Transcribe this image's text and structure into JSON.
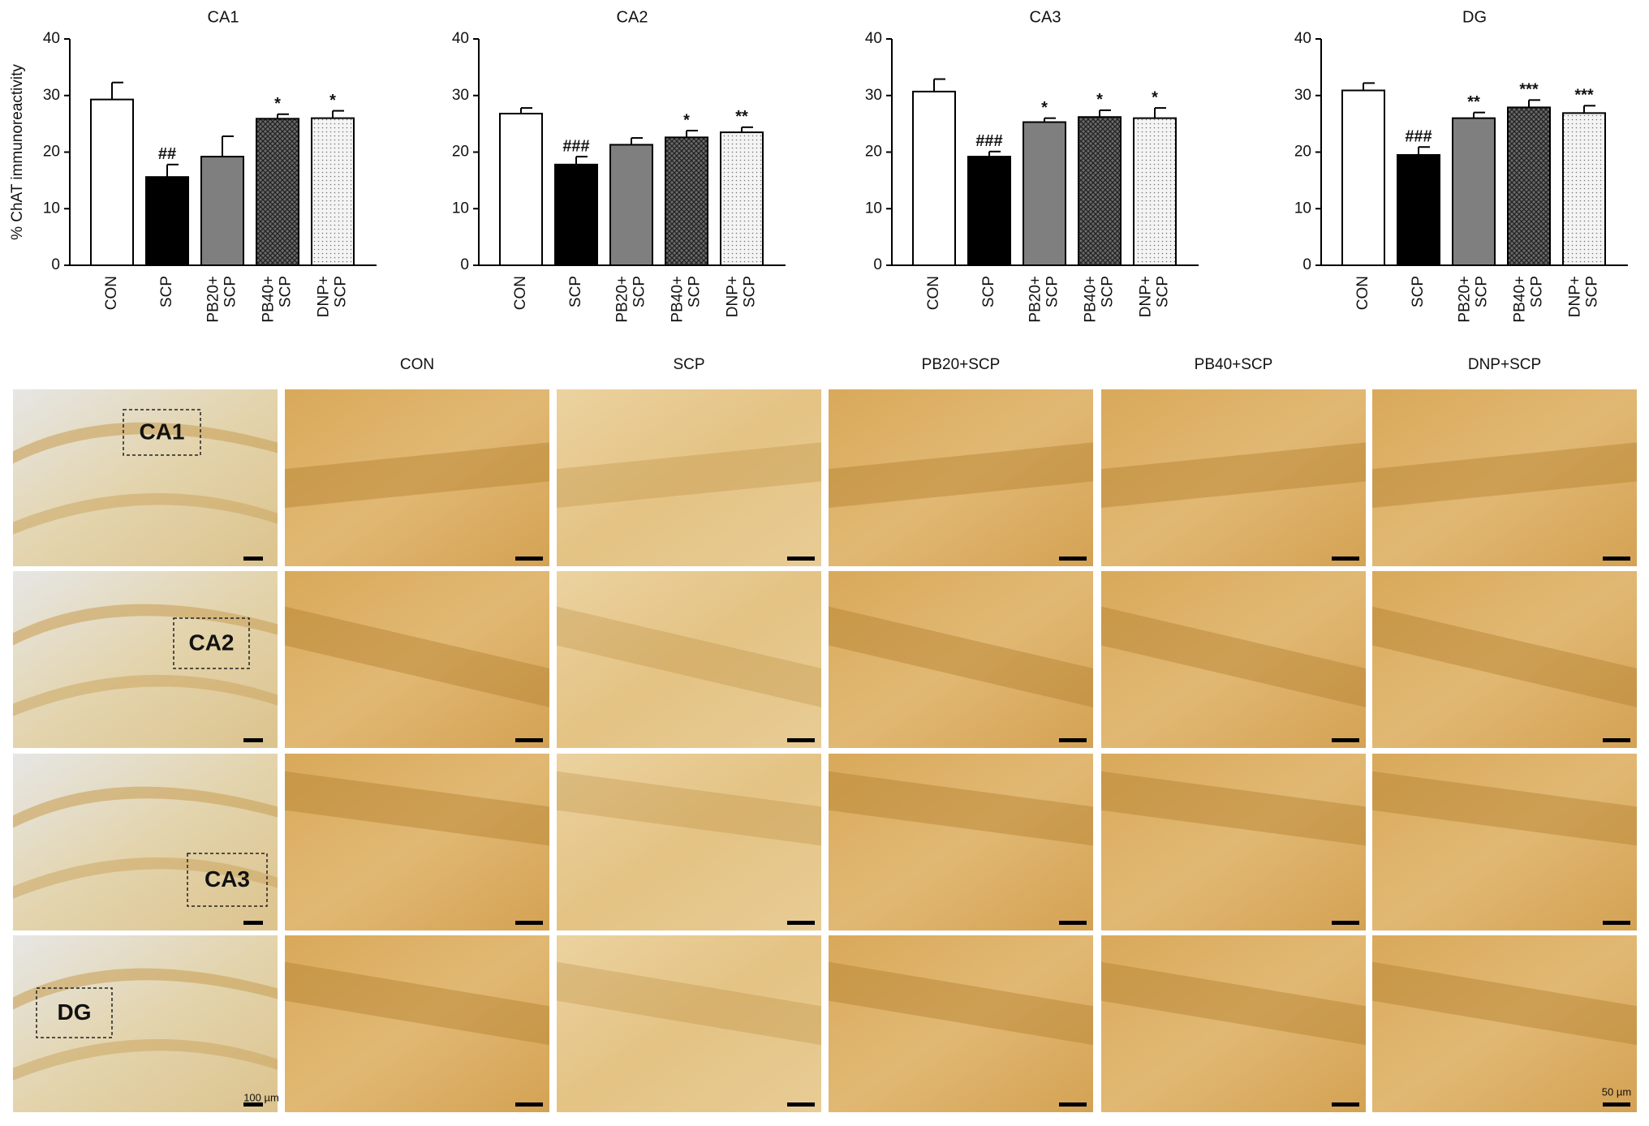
{
  "chart_data": [
    {
      "type": "bar",
      "title": "CA1",
      "ylabel": "% ChAT immunoreactivity",
      "categories": [
        "CON",
        "SCP",
        "PB20+ SCP",
        "PB40+ SCP",
        "DNP+ SCP"
      ],
      "values": [
        29.3,
        15.6,
        19.2,
        25.9,
        26.0
      ],
      "errors": [
        3.0,
        2.2,
        3.6,
        0.8,
        1.3
      ],
      "annotations": [
        null,
        "##",
        null,
        "*",
        "*"
      ],
      "colors": [
        "#ffffff",
        "#000000",
        "#7f7f7f",
        "#555555",
        "#f2f2f2"
      ],
      "patterns": [
        "solid",
        "solid",
        "solid",
        "crosshatch",
        "dots"
      ],
      "ylim": [
        0,
        40
      ],
      "yticks": [
        0,
        10,
        20,
        30,
        40
      ]
    },
    {
      "type": "bar",
      "title": "CA2",
      "categories": [
        "CON",
        "SCP",
        "PB20+ SCP",
        "PB40+ SCP",
        "DNP+ SCP"
      ],
      "values": [
        26.8,
        17.8,
        21.3,
        22.6,
        23.5
      ],
      "errors": [
        1.0,
        1.4,
        1.2,
        1.2,
        0.9
      ],
      "annotations": [
        null,
        "###",
        null,
        "*",
        "**"
      ],
      "colors": [
        "#ffffff",
        "#000000",
        "#7f7f7f",
        "#555555",
        "#f2f2f2"
      ],
      "patterns": [
        "solid",
        "solid",
        "solid",
        "crosshatch",
        "dots"
      ],
      "ylim": [
        0,
        40
      ],
      "yticks": [
        0,
        10,
        20,
        30,
        40
      ]
    },
    {
      "type": "bar",
      "title": "CA3",
      "categories": [
        "CON",
        "SCP",
        "PB20+ SCP",
        "PB40+ SCP",
        "DNP+ SCP"
      ],
      "values": [
        30.7,
        19.2,
        25.3,
        26.2,
        26.0
      ],
      "errors": [
        2.2,
        0.9,
        0.7,
        1.2,
        1.8
      ],
      "annotations": [
        null,
        "###",
        "*",
        "*",
        "*"
      ],
      "colors": [
        "#ffffff",
        "#000000",
        "#7f7f7f",
        "#555555",
        "#f2f2f2"
      ],
      "patterns": [
        "solid",
        "solid",
        "solid",
        "crosshatch",
        "dots"
      ],
      "ylim": [
        0,
        40
      ],
      "yticks": [
        0,
        10,
        20,
        30,
        40
      ]
    },
    {
      "type": "bar",
      "title": "DG",
      "categories": [
        "CON",
        "SCP",
        "PB20+ SCP",
        "PB40+ SCP",
        "DNP+ SCP"
      ],
      "values": [
        30.9,
        19.5,
        26.0,
        27.9,
        26.9
      ],
      "errors": [
        1.3,
        1.4,
        1.0,
        1.3,
        1.3
      ],
      "annotations": [
        null,
        "###",
        "**",
        "***",
        "***"
      ],
      "colors": [
        "#ffffff",
        "#000000",
        "#7f7f7f",
        "#555555",
        "#f2f2f2"
      ],
      "patterns": [
        "solid",
        "solid",
        "solid",
        "crosshatch",
        "dots"
      ],
      "ylim": [
        0,
        40
      ],
      "yticks": [
        0,
        10,
        20,
        30,
        40
      ]
    }
  ],
  "micrographs": {
    "column_labels": [
      "CON",
      "SCP",
      "PB20+SCP",
      "PB40+SCP",
      "DNP+SCP"
    ],
    "region_labels": [
      "CA1",
      "CA2",
      "CA3",
      "DG"
    ],
    "scale_bars": [
      "100 µm",
      "50 µm"
    ]
  }
}
